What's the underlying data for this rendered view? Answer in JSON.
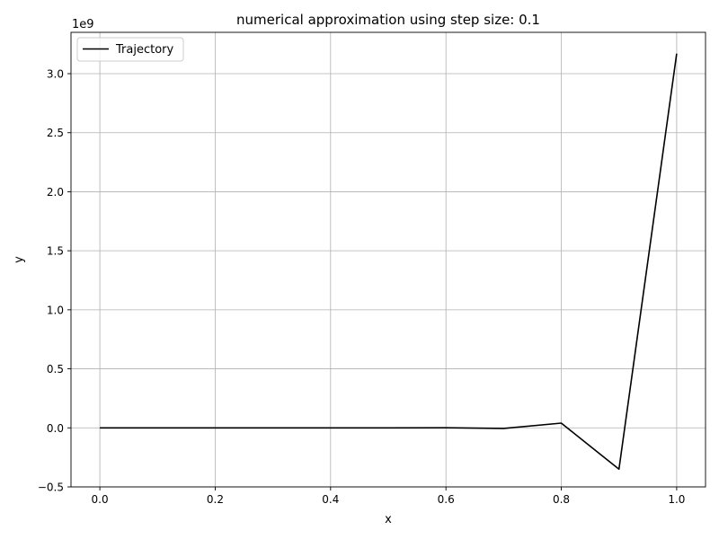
{
  "chart_data": {
    "type": "line",
    "title": "numerical approximation using step size: 0.1",
    "xlabel": "x",
    "ylabel": "y",
    "y_scale_label": "1e9",
    "y_scale": 1000000000,
    "xlim": [
      -0.05,
      1.05
    ],
    "ylim": [
      -0.5,
      3.35
    ],
    "xticks": [
      0.0,
      0.2,
      0.4,
      0.6,
      0.8,
      1.0
    ],
    "xtick_labels": [
      "0.0",
      "0.2",
      "0.4",
      "0.6",
      "0.8",
      "1.0"
    ],
    "yticks": [
      -0.5,
      0.0,
      0.5,
      1.0,
      1.5,
      2.0,
      2.5,
      3.0
    ],
    "ytick_labels": [
      "−0.5",
      "0.0",
      "0.5",
      "1.0",
      "1.5",
      "2.0",
      "2.5",
      "3.0"
    ],
    "grid": true,
    "legend_position": "upper-left",
    "series": [
      {
        "name": "Trajectory",
        "color": "#000000",
        "x": [
          0.0,
          0.1,
          0.2,
          0.3,
          0.4,
          0.5,
          0.6,
          0.7,
          0.8,
          0.9,
          1.0
        ],
        "y": [
          0.0,
          0.0,
          0.0,
          0.0,
          0.0,
          0.0,
          0.001,
          -0.005,
          0.04,
          -0.35,
          3.17
        ]
      }
    ]
  }
}
